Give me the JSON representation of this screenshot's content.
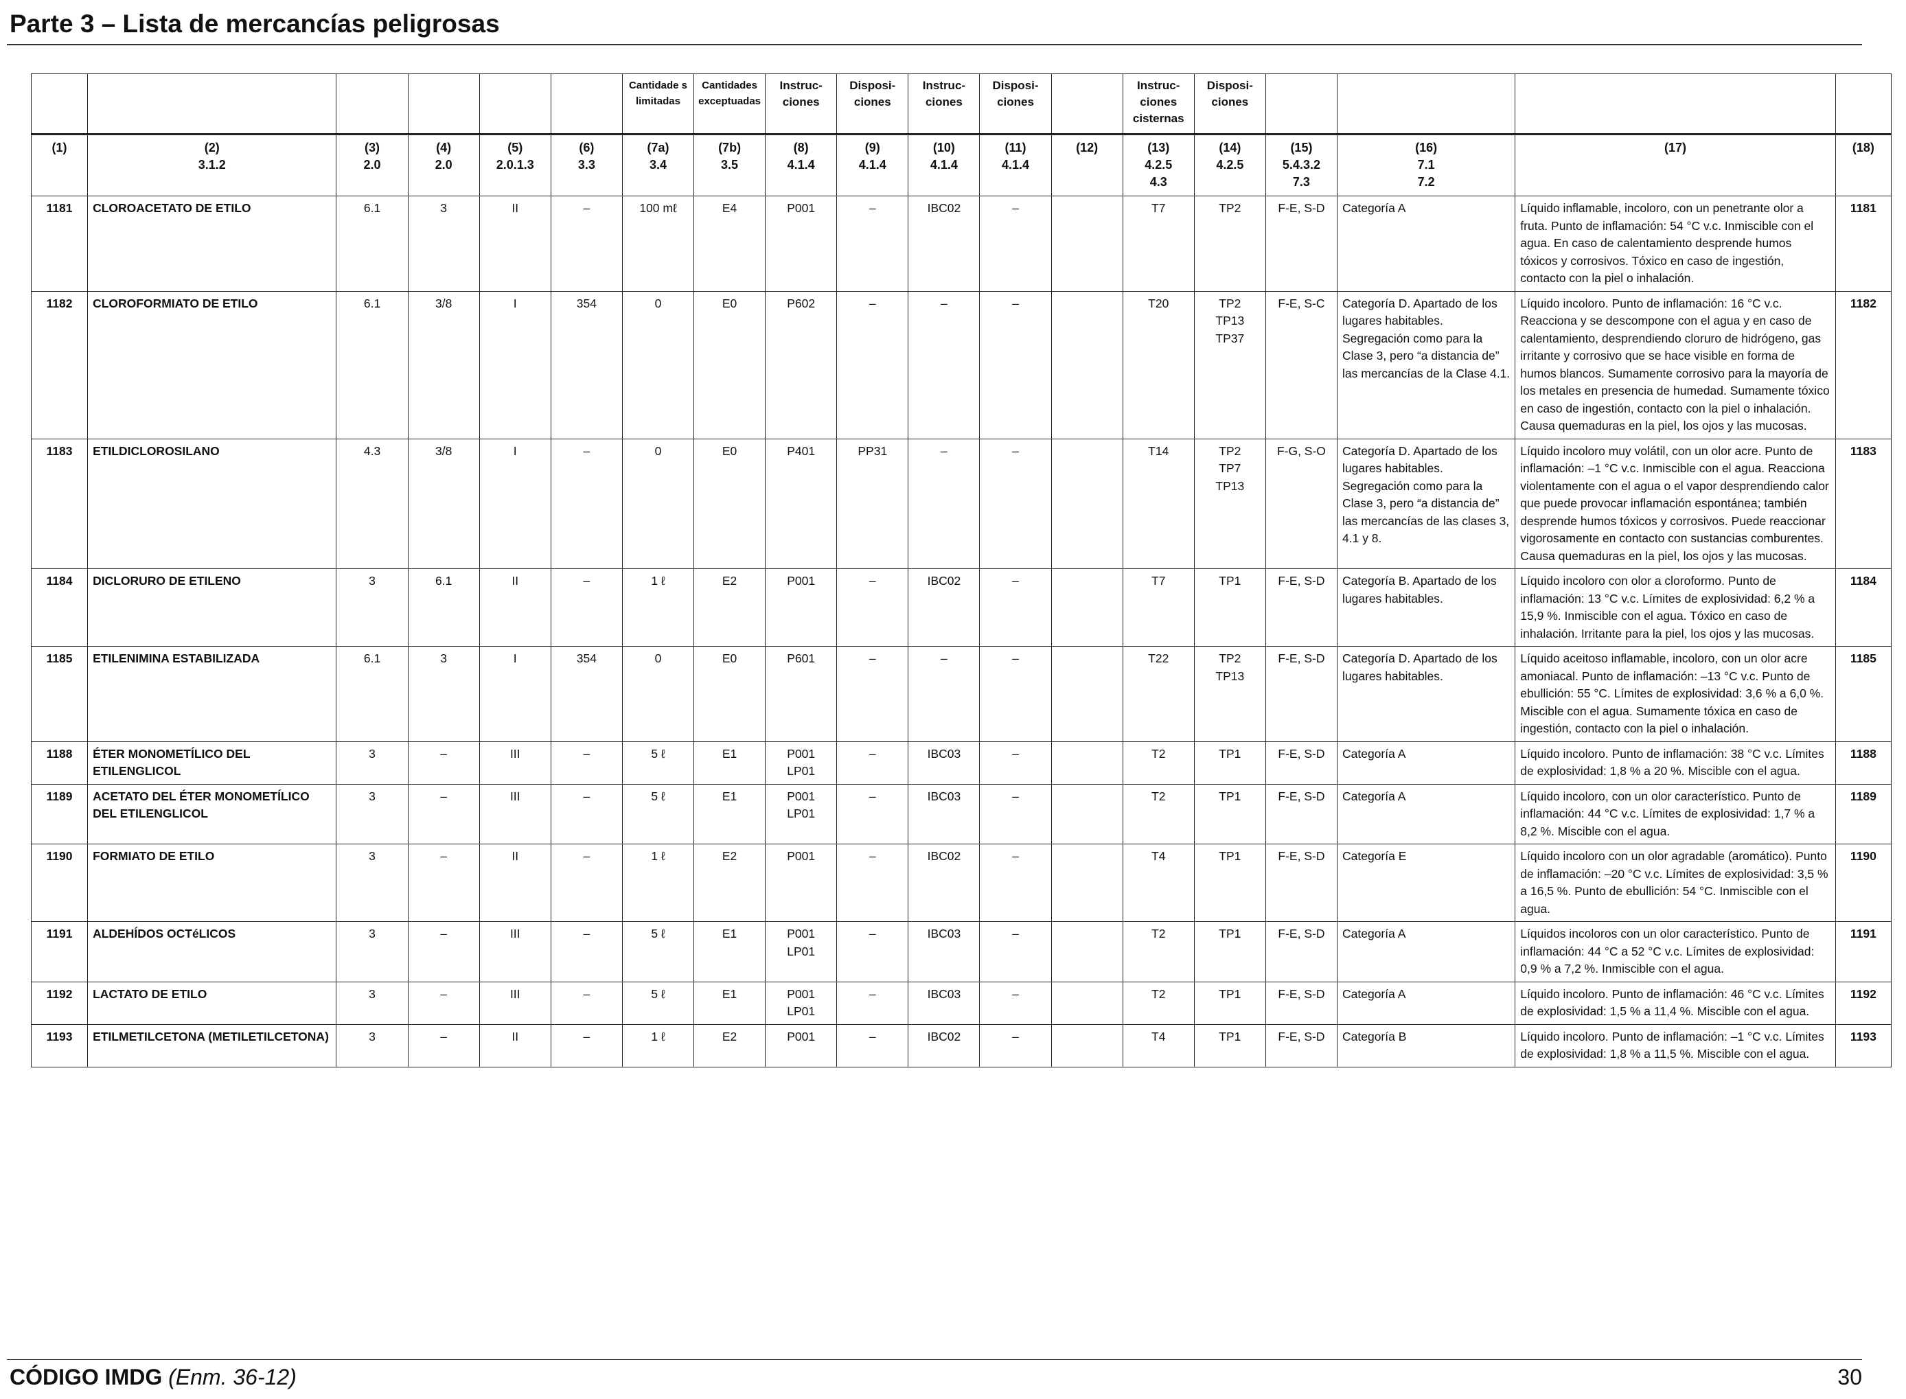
{
  "page": {
    "title": "Parte 3 – Lista de mercancías peligrosas",
    "footer_code": "CÓDIGO IMDG",
    "footer_amendment": "(Enm. 36-12)",
    "page_number": "30"
  },
  "table": {
    "header_top": [
      "",
      "",
      "",
      "",
      "",
      "",
      "Cantidade s limitadas",
      "Cantidades exceptuadas",
      "Instruc- ciones",
      "Disposi- ciones",
      "Instruc- ciones",
      "Disposi- ciones",
      "",
      "Instruc- ciones cisternas",
      "Disposi- ciones",
      "",
      "",
      "",
      ""
    ],
    "header_num": [
      "(1)",
      "(2)",
      "(3)",
      "(4)",
      "(5)",
      "(6)",
      "(7a)",
      "(7b)",
      "(8)",
      "(9)",
      "(10)",
      "(11)",
      "(12)",
      "(13)",
      "(14)",
      "(15)",
      "(16)",
      "(17)",
      "(18)"
    ],
    "header_ref": [
      "",
      "3.1.2",
      "2.0",
      "2.0",
      "2.0.1.3",
      "3.3",
      "3.4",
      "3.5",
      "4.1.4",
      "4.1.4",
      "4.1.4",
      "4.1.4",
      "",
      "4.2.5\n4.3",
      "4.2.5",
      "5.4.3.2\n7.3",
      "7.1\n7.2",
      "",
      ""
    ],
    "rows": [
      {
        "c1": "1181",
        "c2": "CLOROACETATO DE ETILO",
        "c3": "6.1",
        "c4": "3",
        "c5": "II",
        "c6": "–",
        "c7a": "100 mℓ",
        "c7b": "E4",
        "c8": "P001",
        "c9": "–",
        "c10": "IBC02",
        "c11": "–",
        "c12": "",
        "c13": "T7",
        "c14": "TP2",
        "c15": "F-E, S-D",
        "c16": "Categoría A",
        "c17": "Líquido inflamable, incoloro, con un penetrante olor a fruta. Punto de inflamación: 54 °C v.c. Inmiscible con el agua. En caso de calentamiento desprende humos tóxicos y corrosivos. Tóxico en caso de ingestión, contacto con la piel o inhalación.",
        "c18": "1181"
      },
      {
        "c1": "1182",
        "c2": "CLOROFORMIATO DE ETILO",
        "c3": "6.1",
        "c4": "3/8",
        "c5": "I",
        "c6": "354",
        "c7a": "0",
        "c7b": "E0",
        "c8": "P602",
        "c9": "–",
        "c10": "–",
        "c11": "–",
        "c12": "",
        "c13": "T20",
        "c14": "TP2\nTP13\nTP37",
        "c15": "F-E, S-C",
        "c16": "Categoría D. Apartado de los lugares habitables. Segregación como para la Clase 3, pero “a distancia de” las mercancías de la Clase 4.1.",
        "c17": "Líquido incoloro. Punto de inflamación: 16 °C v.c. Reacciona y se descompone con el agua y en caso de calentamiento, desprendiendo cloruro de hidrógeno, gas irritante y corrosivo que se hace visible en forma de humos blancos. Sumamente corrosivo para la mayoría de los metales en presencia de humedad. Sumamente tóxico en caso de ingestión, contacto con la piel o inhalación. Causa quemaduras en la piel, los ojos y las mucosas.",
        "c18": "1182"
      },
      {
        "c1": "1183",
        "c2": "ETILDICLOROSILANO",
        "c3": "4.3",
        "c4": "3/8",
        "c5": "I",
        "c6": "–",
        "c7a": "0",
        "c7b": "E0",
        "c8": "P401",
        "c9": "PP31",
        "c10": "–",
        "c11": "–",
        "c12": "",
        "c13": "T14",
        "c14": "TP2\nTP7\nTP13",
        "c15": "F-G, S-O",
        "c16": "Categoría D. Apartado de los lugares habitables. Segregación como para la Clase 3, pero “a distancia de” las mercancías de las clases 3, 4.1 y 8.",
        "c17": "Líquido incoloro muy volátil, con un olor acre. Punto de inflamación: –1 °C v.c. Inmiscible con el agua. Reacciona violentamente con el agua o el vapor desprendiendo calor que puede provocar inflamación espontánea; también desprende humos tóxicos y corrosivos. Puede reaccionar vigorosamente en contacto con sustancias comburentes. Causa quemaduras en la piel, los ojos y las mucosas.",
        "c18": "1183"
      },
      {
        "c1": "1184",
        "c2": "DICLORURO DE ETILENO",
        "c3": "3",
        "c4": "6.1",
        "c5": "II",
        "c6": "–",
        "c7a": "1 ℓ",
        "c7b": "E2",
        "c8": "P001",
        "c9": "–",
        "c10": "IBC02",
        "c11": "–",
        "c12": "",
        "c13": "T7",
        "c14": "TP1",
        "c15": "F-E, S-D",
        "c16": "Categoría B. Apartado de los lugares habitables.",
        "c17": "Líquido incoloro con olor a cloroformo. Punto de inflamación: 13 °C v.c. Límites de explosividad: 6,2 % a 15,9 %. Inmiscible con el agua. Tóxico en caso de inhalación. Irritante para la piel, los ojos y las mucosas.",
        "c18": "1184"
      },
      {
        "c1": "1185",
        "c2": "ETILENIMINA ESTABILIZADA",
        "c3": "6.1",
        "c4": "3",
        "c5": "I",
        "c6": "354",
        "c7a": "0",
        "c7b": "E0",
        "c8": "P601",
        "c9": "–",
        "c10": "–",
        "c11": "–",
        "c12": "",
        "c13": "T22",
        "c14": "TP2\nTP13",
        "c15": "F-E, S-D",
        "c16": "Categoría D. Apartado de los lugares habitables.",
        "c17": "Líquido aceitoso inflamable, incoloro, con un olor acre amoniacal. Punto de inflamación: –13 °C v.c. Punto de ebullición: 55 °C. Límites de explosividad: 3,6 % a 6,0 %. Miscible con el agua. Sumamente tóxica en caso de ingestión, contacto con la piel o inhalación.",
        "c18": "1185"
      },
      {
        "c1": "1188",
        "c2": "ÉTER MONOMETÍLICO DEL ETILENGLICOL",
        "c3": "3",
        "c4": "–",
        "c5": "III",
        "c6": "–",
        "c7a": "5 ℓ",
        "c7b": "E1",
        "c8": "P001\nLP01",
        "c9": "–",
        "c10": "IBC03",
        "c11": "–",
        "c12": "",
        "c13": "T2",
        "c14": "TP1",
        "c15": "F-E, S-D",
        "c16": "Categoría A",
        "c17": "Líquido incoloro. Punto de inflamación: 38 °C v.c. Límites de explosividad: 1,8 % a 20 %. Miscible con el agua.",
        "c18": "1188"
      },
      {
        "c1": "1189",
        "c2": "ACETATO DEL ÉTER MONOMETÍLICO DEL ETILENGLICOL",
        "c3": "3",
        "c4": "–",
        "c5": "III",
        "c6": "–",
        "c7a": "5 ℓ",
        "c7b": "E1",
        "c8": "P001\nLP01",
        "c9": "–",
        "c10": "IBC03",
        "c11": "–",
        "c12": "",
        "c13": "T2",
        "c14": "TP1",
        "c15": "F-E, S-D",
        "c16": "Categoría A",
        "c17": "Líquido incoloro, con un olor característico. Punto de inflamación: 44 °C v.c. Límites de explosividad: 1,7 % a 8,2 %. Miscible con el agua.",
        "c18": "1189"
      },
      {
        "c1": "1190",
        "c2": "FORMIATO DE ETILO",
        "c3": "3",
        "c4": "–",
        "c5": "II",
        "c6": "–",
        "c7a": "1 ℓ",
        "c7b": "E2",
        "c8": "P001",
        "c9": "–",
        "c10": "IBC02",
        "c11": "–",
        "c12": "",
        "c13": "T4",
        "c14": "TP1",
        "c15": "F-E, S-D",
        "c16": "Categoría E",
        "c17": "Líquido incoloro con un olor agradable (aromático). Punto de inflamación: –20 °C v.c. Límites de explosividad: 3,5 % a 16,5 %. Punto de ebullición: 54 °C. Inmiscible con el agua.",
        "c18": "1190"
      },
      {
        "c1": "1191",
        "c2": "ALDEHÍDOS OCTéLICOS",
        "c3": "3",
        "c4": "–",
        "c5": "III",
        "c6": "–",
        "c7a": "5 ℓ",
        "c7b": "E1",
        "c8": "P001\nLP01",
        "c9": "–",
        "c10": "IBC03",
        "c11": "–",
        "c12": "",
        "c13": "T2",
        "c14": "TP1",
        "c15": "F-E, S-D",
        "c16": "Categoría A",
        "c17": "Líquidos incoloros con un olor característico. Punto de inflamación: 44 °C a 52 °C v.c. Límites de explosividad: 0,9 % a 7,2 %. Inmiscible con el agua.",
        "c18": "1191"
      },
      {
        "c1": "1192",
        "c2": "LACTATO DE ETILO",
        "c3": "3",
        "c4": "–",
        "c5": "III",
        "c6": "–",
        "c7a": "5 ℓ",
        "c7b": "E1",
        "c8": "P001\nLP01",
        "c9": "–",
        "c10": "IBC03",
        "c11": "–",
        "c12": "",
        "c13": "T2",
        "c14": "TP1",
        "c15": "F-E, S-D",
        "c16": "Categoría A",
        "c17": "Líquido incoloro. Punto de inflamación: 46 °C v.c. Límites de explosividad: 1,5 % a 11,4 %. Miscible con el agua.",
        "c18": "1192"
      },
      {
        "c1": "1193",
        "c2": "ETILMETILCETONA (METILETILCETONA)",
        "c3": "3",
        "c4": "–",
        "c5": "II",
        "c6": "–",
        "c7a": "1 ℓ",
        "c7b": "E2",
        "c8": "P001",
        "c9": "–",
        "c10": "IBC02",
        "c11": "–",
        "c12": "",
        "c13": "T4",
        "c14": "TP1",
        "c15": "F-E, S-D",
        "c16": "Categoría B",
        "c17": "Líquido incoloro. Punto de inflamación: –1 °C v.c. Límites de explosividad: 1,8 % a 11,5 %. Miscible con el agua.",
        "c18": "1193"
      }
    ]
  }
}
